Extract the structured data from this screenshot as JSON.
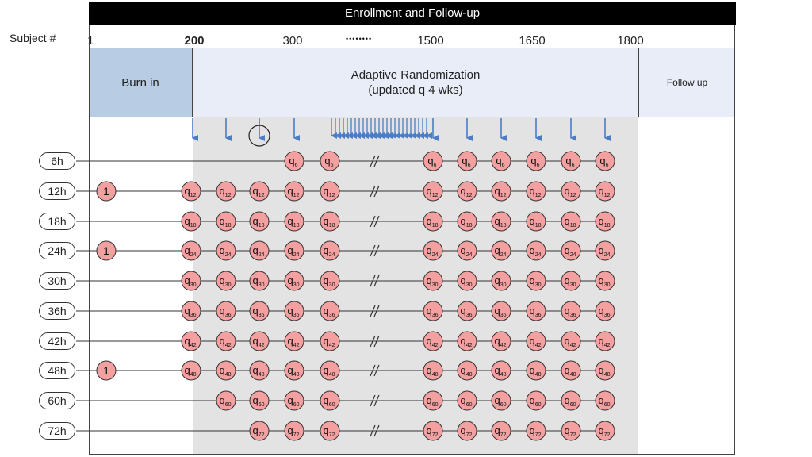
{
  "header": {
    "title": "Enrollment and Follow-up"
  },
  "subject_axis": {
    "label": "Subject #",
    "ticks": [
      {
        "label": "1",
        "bold": false
      },
      {
        "label": "200",
        "bold": true
      },
      {
        "label": "300",
        "bold": false
      },
      {
        "label": "1500",
        "bold": false
      },
      {
        "label": "1650",
        "bold": false
      },
      {
        "label": "1800",
        "bold": false
      }
    ],
    "ellipsis": "••••••••"
  },
  "phases": {
    "burn_in": "Burn in",
    "adaptive_line1": "Adaptive Randomization",
    "adaptive_line2": "(updated q 4 wks)",
    "follow_up": "Follow up"
  },
  "rows": [
    {
      "label": "6h",
      "sub": "6",
      "burnin_node": false,
      "start_col": 3
    },
    {
      "label": "12h",
      "sub": "12",
      "burnin_node": true,
      "start_col": 0
    },
    {
      "label": "18h",
      "sub": "18",
      "burnin_node": false,
      "start_col": 0
    },
    {
      "label": "24h",
      "sub": "24",
      "burnin_node": true,
      "start_col": 0
    },
    {
      "label": "30h",
      "sub": "30",
      "burnin_node": false,
      "start_col": 0
    },
    {
      "label": "36h",
      "sub": "36",
      "burnin_node": false,
      "start_col": 0
    },
    {
      "label": "42h",
      "sub": "42",
      "burnin_node": false,
      "start_col": 0
    },
    {
      "label": "48h",
      "sub": "48",
      "burnin_node": true,
      "start_col": 0
    },
    {
      "label": "60h",
      "sub": "60",
      "burnin_node": false,
      "start_col": 1
    },
    {
      "label": "72h",
      "sub": "72",
      "burnin_node": false,
      "start_col": 2
    }
  ],
  "node_prefix": "q",
  "burnin_node_label": "1",
  "colors": {
    "node_fill": "#f4a0a0",
    "node_stroke": "#333333",
    "arrow": "#4a7cc7",
    "burn_in_fill": "#b8cce4",
    "adaptive_fill": "#e9edf8",
    "grey_region": "#e3e3e3"
  }
}
